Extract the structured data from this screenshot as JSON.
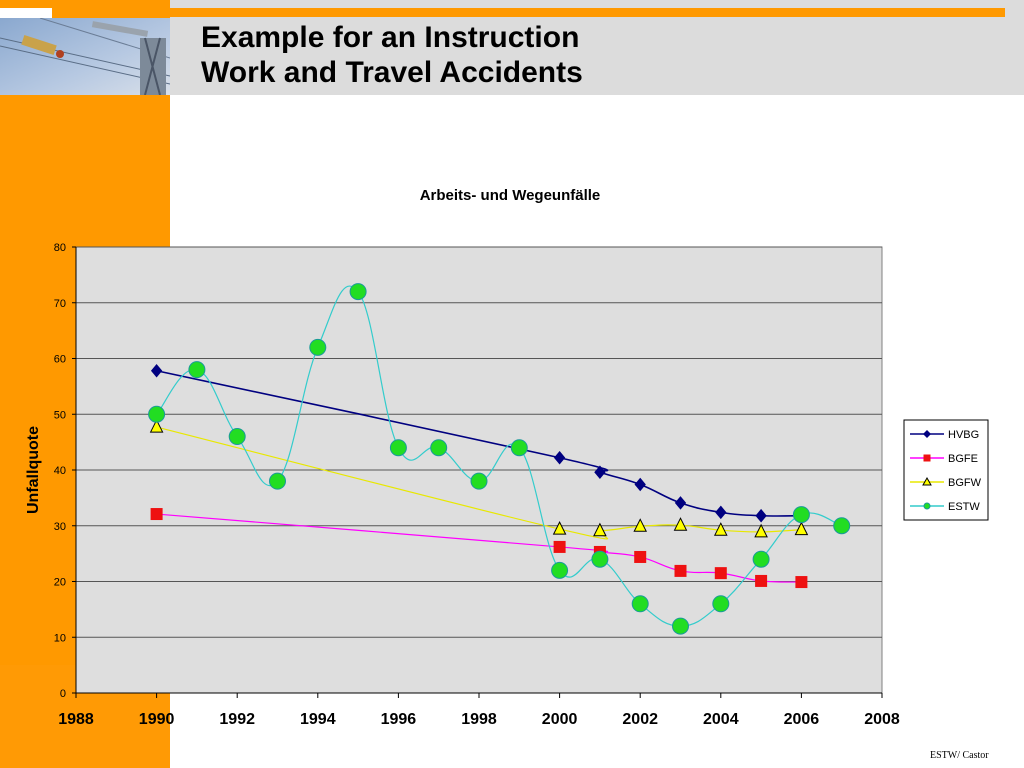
{
  "slide": {
    "title_line1": "Example for an Instruction",
    "title_line2": "Work and Travel Accidents",
    "footer": "ESTW/ Castor"
  },
  "colors": {
    "orange": "#ff9900",
    "header_gray": "#dcdcdc",
    "plot_bg": "#dedede"
  },
  "chart_data": {
    "type": "line",
    "title": "Arbeits- und Wegeunfälle",
    "ylabel": "Unfallquote",
    "xlabel": "",
    "xlim": [
      1988,
      2008
    ],
    "ylim": [
      0,
      80
    ],
    "xticks": [
      1988,
      1990,
      1992,
      1994,
      1996,
      1998,
      2000,
      2002,
      2004,
      2006,
      2008
    ],
    "yticks": [
      0,
      10,
      20,
      30,
      40,
      50,
      60,
      70,
      80
    ],
    "grid": "horizontal",
    "legend_position": "right",
    "series": [
      {
        "name": "HVBG",
        "color": "#000080",
        "marker": "diamond",
        "points": [
          [
            1990,
            57.8
          ],
          [
            2000,
            42.2
          ],
          [
            2001,
            39.6
          ],
          [
            2002,
            37.4
          ],
          [
            2003,
            34.1
          ],
          [
            2004,
            32.4
          ],
          [
            2005,
            31.8
          ],
          [
            2006,
            31.8
          ]
        ]
      },
      {
        "name": "BGFE",
        "color": "#ff00ff",
        "marker": "square",
        "marker_color": "#ee1111",
        "points": [
          [
            1990,
            32.1
          ],
          [
            2000,
            26.2
          ],
          [
            2001,
            25.3
          ],
          [
            2002,
            24.4
          ],
          [
            2003,
            21.9
          ],
          [
            2004,
            21.5
          ],
          [
            2005,
            20.1
          ],
          [
            2006,
            19.9
          ]
        ]
      },
      {
        "name": "BGFW",
        "color": "#e8e800",
        "marker": "triangle",
        "marker_color": "#ffff00",
        "points": [
          [
            1990,
            47.7
          ],
          [
            2000,
            29.4
          ],
          [
            2001,
            29.1
          ],
          [
            2002,
            29.9
          ],
          [
            2003,
            30.1
          ],
          [
            2004,
            29.2
          ],
          [
            2005,
            28.9
          ],
          [
            2006,
            29.3
          ]
        ]
      },
      {
        "name": "ESTW",
        "color": "#33cccc",
        "marker": "circle",
        "marker_color": "#22dd22",
        "points": [
          [
            1990,
            50
          ],
          [
            1991,
            58
          ],
          [
            1992,
            46
          ],
          [
            1993,
            38
          ],
          [
            1994,
            62
          ],
          [
            1995,
            72
          ],
          [
            1996,
            44
          ],
          [
            1997,
            44
          ],
          [
            1998,
            38
          ],
          [
            1999,
            44
          ],
          [
            2000,
            22
          ],
          [
            2001,
            24
          ],
          [
            2002,
            16
          ],
          [
            2003,
            12
          ],
          [
            2004,
            16
          ],
          [
            2005,
            24
          ],
          [
            2006,
            32
          ],
          [
            2007,
            30
          ]
        ]
      }
    ]
  }
}
